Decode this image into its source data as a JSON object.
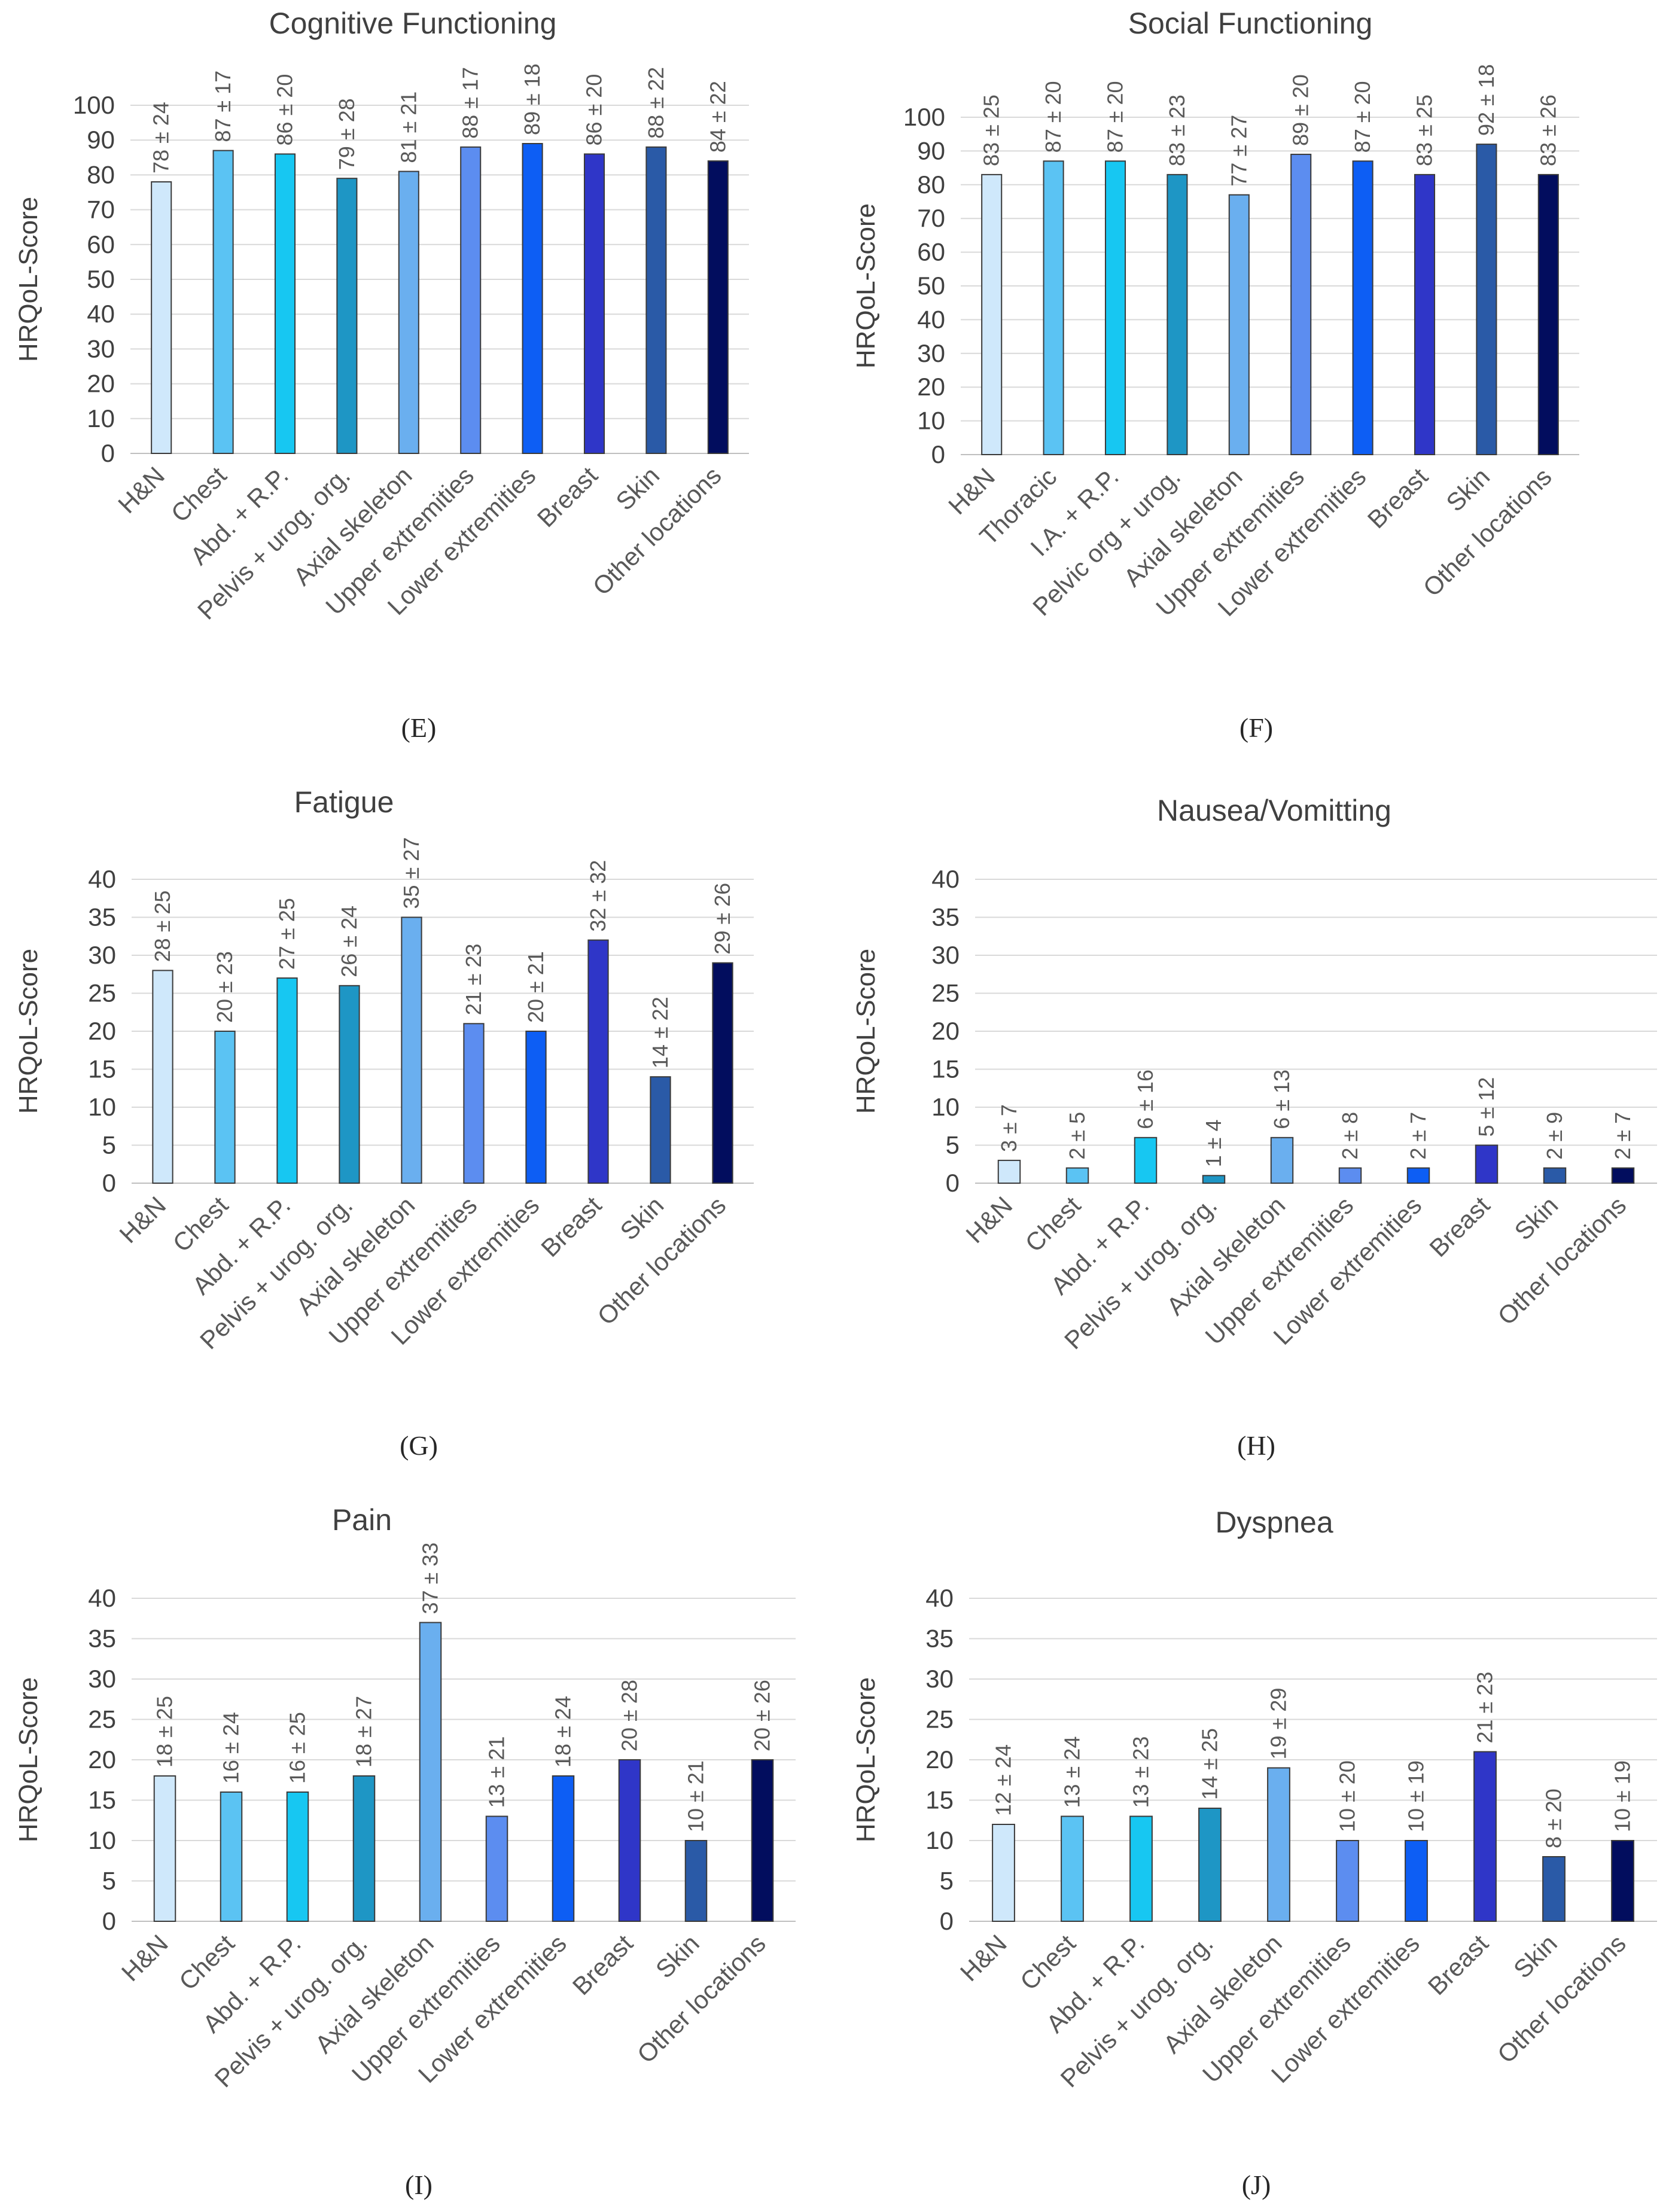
{
  "colors": [
    "#cfe8fb",
    "#5bc3f3",
    "#17c7f2",
    "#1e96c5",
    "#6aafef",
    "#5c8df0",
    "#0d5ef4",
    "#2f36c8",
    "#2a5aa7",
    "#020d5e"
  ],
  "chart_data": [
    {
      "id": "E",
      "letter": "(E)",
      "type": "bar",
      "title": "Cognitive Functioning",
      "ylabel": "HRQoL-Score",
      "xlabel": "",
      "ylim": [
        0,
        100
      ],
      "ystep": 10,
      "categories": [
        "H&N",
        "Chest",
        "Abd. + R.P.",
        "Pelvis + urog. org.",
        "Axial skeleton",
        "Upper extremities",
        "Lower extremities",
        "Breast",
        "Skin",
        "Other locations"
      ],
      "values": [
        78,
        87,
        86,
        79,
        81,
        88,
        89,
        86,
        88,
        84
      ],
      "labels": [
        "78 ± 24",
        "87 ± 17",
        "86 ± 20",
        "79 ± 28",
        "81 ± 21",
        "88 ± 17",
        "89 ± 18",
        "86 ± 20",
        "88 ± 22",
        "84 ± 22"
      ]
    },
    {
      "id": "F",
      "letter": "(F)",
      "type": "bar",
      "title": "Social Functioning",
      "ylabel": "HRQoL-Score",
      "xlabel": "",
      "ylim": [
        0,
        100
      ],
      "ystep": 10,
      "categories": [
        "H&N",
        "Thoracic",
        "I.A. + R.P.",
        "Pelvic org + urog.",
        "Axial skeleton",
        "Upper extremities",
        "Lower extremities",
        "Breast",
        "Skin",
        "Other locations"
      ],
      "values": [
        83,
        87,
        87,
        83,
        77,
        89,
        87,
        83,
        92,
        83
      ],
      "labels": [
        "83 ± 25",
        "87 ± 20",
        "87 ± 20",
        "83 ± 23",
        "77 ± 27",
        "89 ± 20",
        "87 ± 20",
        "83 ± 25",
        "92 ± 18",
        "83 ± 26"
      ]
    },
    {
      "id": "G",
      "letter": "(G)",
      "type": "bar",
      "title": "Fatigue",
      "ylabel": "HRQoL-Score",
      "xlabel": "",
      "ylim": [
        0,
        40
      ],
      "ystep": 5,
      "categories": [
        "H&N",
        "Chest",
        "Abd. + R.P.",
        "Pelvis + urog. org.",
        "Axial skeleton",
        "Upper extremities",
        "Lower extremities",
        "Breast",
        "Skin",
        "Other locations"
      ],
      "values": [
        28,
        20,
        27,
        26,
        35,
        21,
        20,
        32,
        14,
        29
      ],
      "labels": [
        "28 ± 25",
        "20 ± 23",
        "27 ± 25",
        "26 ± 24",
        "35 ± 27",
        "21 ± 23",
        "20 ± 21",
        "32 ± 32",
        "14 ± 22",
        "29 ± 26"
      ]
    },
    {
      "id": "H",
      "letter": "(H)",
      "type": "bar",
      "title": "Nausea/Vomitting",
      "ylabel": "HRQoL-Score",
      "xlabel": "",
      "ylim": [
        0,
        40
      ],
      "ystep": 5,
      "categories": [
        "H&N",
        "Chest",
        "Abd. + R.P.",
        "Pelvis + urog. org.",
        "Axial skeleton",
        "Upper extremities",
        "Lower extremities",
        "Breast",
        "Skin",
        "Other locations"
      ],
      "values": [
        3,
        2,
        6,
        1,
        6,
        2,
        2,
        5,
        2,
        2
      ],
      "labels": [
        "3 ± 7",
        "2 ± 5",
        "6 ± 16",
        "1 ± 4",
        "6 ± 13",
        "2 ± 8",
        "2 ± 7",
        "5 ± 12",
        "2 ± 9",
        "2 ± 7"
      ]
    },
    {
      "id": "I",
      "letter": "(I)",
      "type": "bar",
      "title": "Pain",
      "ylabel": "HRQoL-Score",
      "xlabel": "",
      "ylim": [
        0,
        40
      ],
      "ystep": 5,
      "categories": [
        "H&N",
        "Chest",
        "Abd. + R.P.",
        "Pelvis + urog. org.",
        "Axial skeleton",
        "Upper extremities",
        "Lower extremities",
        "Breast",
        "Skin",
        "Other locations"
      ],
      "values": [
        18,
        16,
        16,
        18,
        37,
        13,
        18,
        20,
        10,
        20
      ],
      "labels": [
        "18 ± 25",
        "16 ± 24",
        "16 ± 25",
        "18 ± 27",
        "37 ± 33",
        "13 ± 21",
        "18 ± 24",
        "20 ± 28",
        "10 ± 21",
        "20 ± 26"
      ]
    },
    {
      "id": "J",
      "letter": "(J)",
      "type": "bar",
      "title": "Dyspnea",
      "ylabel": "HRQoL-Score",
      "xlabel": "",
      "ylim": [
        0,
        40
      ],
      "ystep": 5,
      "categories": [
        "H&N",
        "Chest",
        "Abd. + R.P.",
        "Pelvis + urog. org.",
        "Axial skeleton",
        "Upper extremities",
        "Lower extremities",
        "Breast",
        "Skin",
        "Other locations"
      ],
      "values": [
        12,
        13,
        13,
        14,
        19,
        10,
        10,
        21,
        8,
        10
      ],
      "labels": [
        "12 ± 24",
        "13 ± 24",
        "13 ± 23",
        "14 ± 25",
        "19 ± 29",
        "10 ± 20",
        "10 ± 19",
        "21 ± 23",
        "8 ± 20",
        "10 ± 19"
      ]
    }
  ]
}
